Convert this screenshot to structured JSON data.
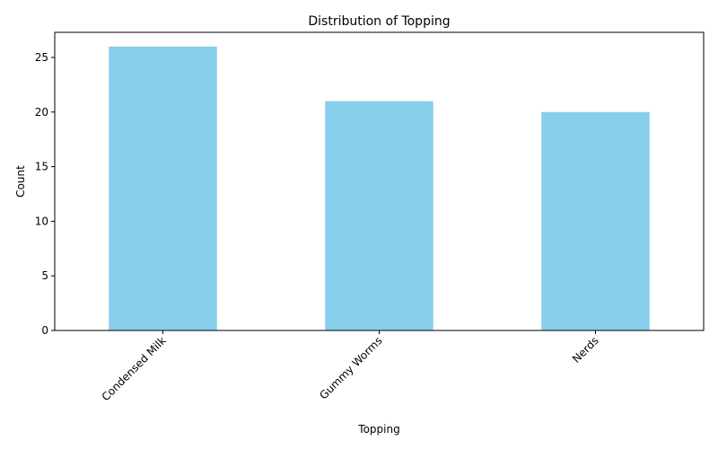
{
  "chart_data": {
    "type": "bar",
    "title": "Distribution of Topping",
    "xlabel": "Topping",
    "ylabel": "Count",
    "categories": [
      "Condensed Milk",
      "Gummy Worms",
      "Nerds"
    ],
    "values": [
      26,
      21,
      20
    ],
    "ylim": [
      0,
      27.3
    ],
    "yticks": [
      0,
      5,
      10,
      15,
      20,
      25
    ],
    "bar_color": "#87CEEB",
    "grid": false,
    "legend": "none",
    "xtick_rotation_deg": 45
  }
}
